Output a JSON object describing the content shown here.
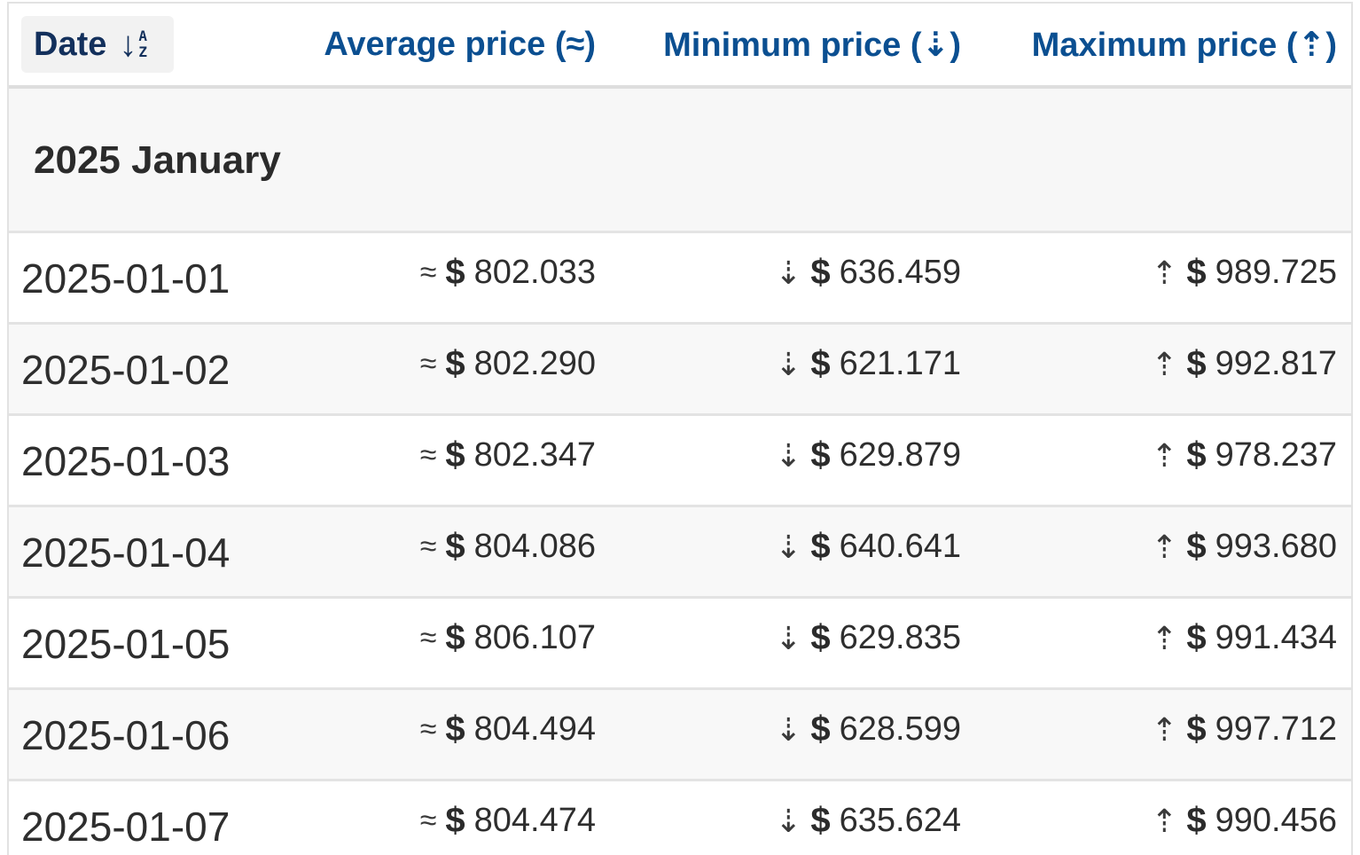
{
  "header": {
    "date_label": "Date",
    "sort_icon_top": "A",
    "sort_icon_bottom": "Z",
    "sort_arrow": "↓",
    "average_label": "Average price (≈)",
    "minimum_label": "Minimum price (⇣)",
    "maximum_label": "Maximum price (⇡)"
  },
  "group": {
    "title": "2025 January"
  },
  "symbols": {
    "approx": "≈",
    "down": "⇣",
    "up": "⇡",
    "currency": "$"
  },
  "rows": [
    {
      "date": "2025-01-01",
      "avg": "802.033",
      "min": "636.459",
      "max": "989.725"
    },
    {
      "date": "2025-01-02",
      "avg": "802.290",
      "min": "621.171",
      "max": "992.817"
    },
    {
      "date": "2025-01-03",
      "avg": "802.347",
      "min": "629.879",
      "max": "978.237"
    },
    {
      "date": "2025-01-04",
      "avg": "804.086",
      "min": "640.641",
      "max": "993.680"
    },
    {
      "date": "2025-01-05",
      "avg": "806.107",
      "min": "629.835",
      "max": "991.434"
    },
    {
      "date": "2025-01-06",
      "avg": "804.494",
      "min": "628.599",
      "max": "997.712"
    },
    {
      "date": "2025-01-07",
      "avg": "804.474",
      "min": "635.624",
      "max": "990.456"
    }
  ],
  "colors": {
    "header_text": "#0b4f91",
    "date_header_text": "#13305c",
    "body_text": "#2e2e2e",
    "row_alt": "#f8f8f8",
    "group_bg": "#f7f7f7"
  }
}
